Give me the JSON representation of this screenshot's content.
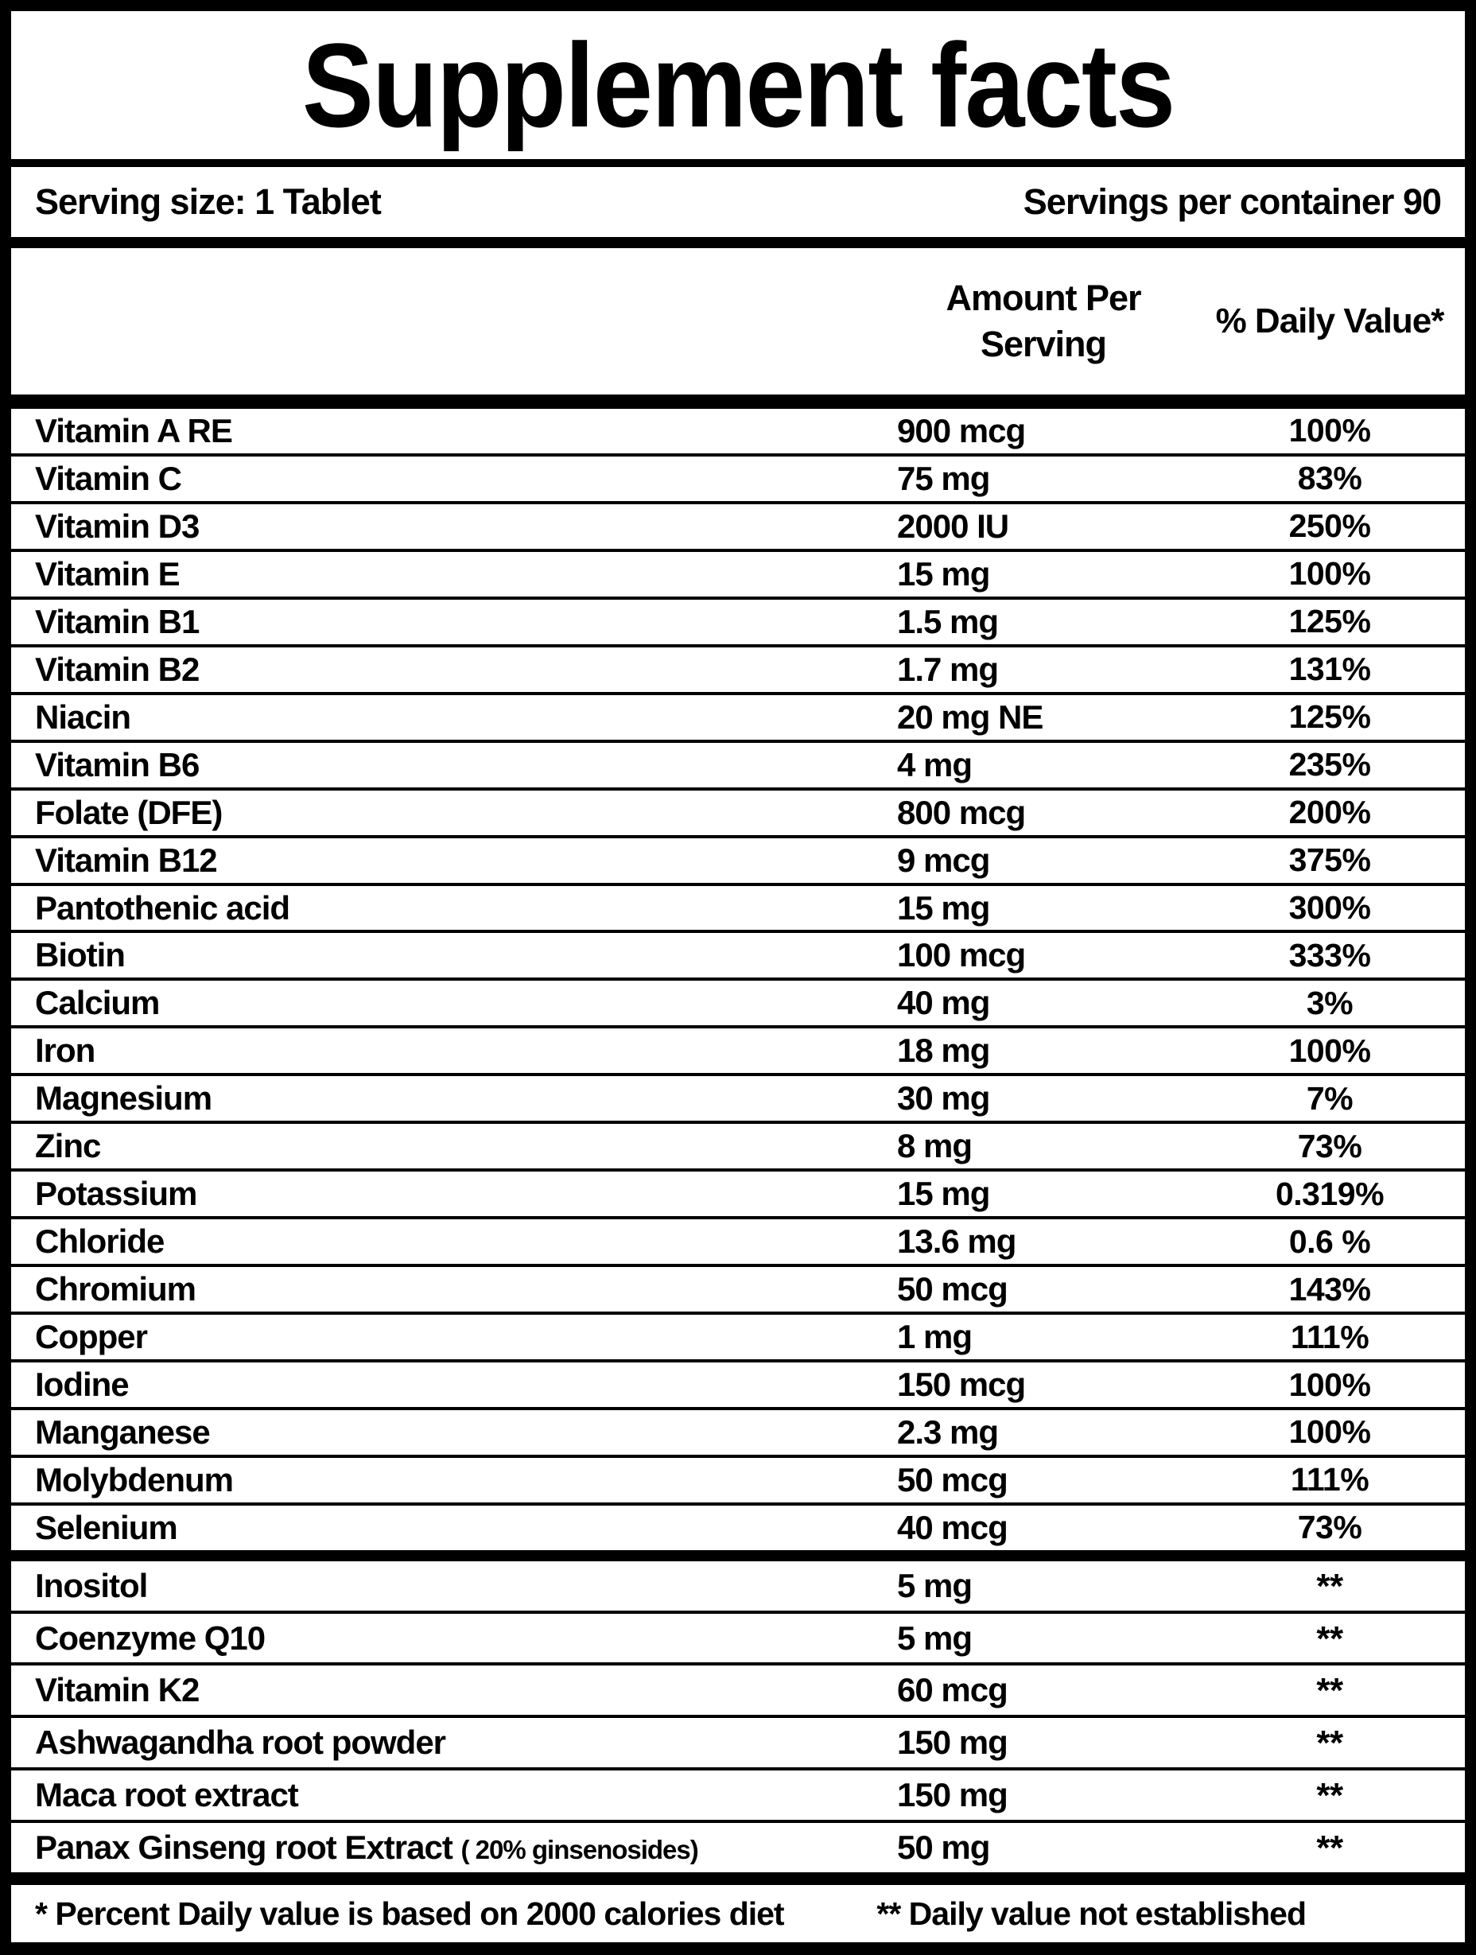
{
  "title": "Supplement facts",
  "serving": {
    "size_label": "Serving size: 1 Tablet",
    "per_container_label": "Servings per container 90"
  },
  "columns": {
    "amount_header": "Amount Per Serving",
    "dv_header": "% Daily Value*"
  },
  "colors": {
    "foreground": "#000000",
    "background": "#ffffff"
  },
  "table": {
    "rows_main": [
      {
        "name": "Vitamin A RE",
        "amount": "900 mcg",
        "dv": "100%"
      },
      {
        "name": "Vitamin C",
        "amount": "75 mg",
        "dv": "83%"
      },
      {
        "name": "Vitamin D3",
        "amount": "2000 IU",
        "dv": "250%"
      },
      {
        "name": "Vitamin E",
        "amount": "15 mg",
        "dv": "100%"
      },
      {
        "name": "Vitamin B1",
        "amount": "1.5 mg",
        "dv": "125%"
      },
      {
        "name": "Vitamin B2",
        "amount": "1.7 mg",
        "dv": "131%"
      },
      {
        "name": "Niacin",
        "amount": "20 mg NE",
        "dv": "125%"
      },
      {
        "name": "Vitamin B6",
        "amount": "4 mg",
        "dv": "235%"
      },
      {
        "name": "Folate (DFE)",
        "amount": "800 mcg",
        "dv": "200%"
      },
      {
        "name": "Vitamin B12",
        "amount": "9 mcg",
        "dv": "375%"
      },
      {
        "name": "Pantothenic acid",
        "amount": "15 mg",
        "dv": "300%"
      },
      {
        "name": "Biotin",
        "amount": "100 mcg",
        "dv": "333%"
      },
      {
        "name": "Calcium",
        "amount": "40 mg",
        "dv": "3%"
      },
      {
        "name": "Iron",
        "amount": "18 mg",
        "dv": "100%"
      },
      {
        "name": "Magnesium",
        "amount": "30 mg",
        "dv": "7%"
      },
      {
        "name": "Zinc",
        "amount": "8 mg",
        "dv": "73%"
      },
      {
        "name": "Potassium",
        "amount": "15 mg",
        "dv": "0.319%"
      },
      {
        "name": "Chloride",
        "amount": "13.6 mg",
        "dv": "0.6 %"
      },
      {
        "name": "Chromium",
        "amount": "50 mcg",
        "dv": "143%"
      },
      {
        "name": "Copper",
        "amount": "1 mg",
        "dv": "111%"
      },
      {
        "name": "Iodine",
        "amount": "150 mcg",
        "dv": "100%"
      },
      {
        "name": "Manganese",
        "amount": "2.3 mg",
        "dv": "100%"
      },
      {
        "name": "Molybdenum",
        "amount": "50 mcg",
        "dv": "111%"
      },
      {
        "name": "Selenium",
        "amount": "40 mcg",
        "dv": "73%"
      }
    ],
    "rows_extra": [
      {
        "name": "Inositol",
        "name_small": "",
        "amount": "5 mg",
        "dv": "**"
      },
      {
        "name": "Coenzyme Q10",
        "name_small": "",
        "amount": "5 mg",
        "dv": "**"
      },
      {
        "name": "Vitamin K2",
        "name_small": "",
        "amount": "60 mcg",
        "dv": "**"
      },
      {
        "name": "Ashwagandha root powder",
        "name_small": "",
        "amount": "150 mg",
        "dv": "**"
      },
      {
        "name": "Maca root extract",
        "name_small": "",
        "amount": "150 mg",
        "dv": "**"
      },
      {
        "name": "Panax Ginseng root  Extract",
        "name_small": "( 20% ginsenosides)",
        "amount": "50 mg",
        "dv": "**"
      }
    ]
  },
  "footnotes": {
    "daily_value": "* Percent Daily value is based on 2000 calories diet",
    "not_established": "** Daily value not established"
  }
}
